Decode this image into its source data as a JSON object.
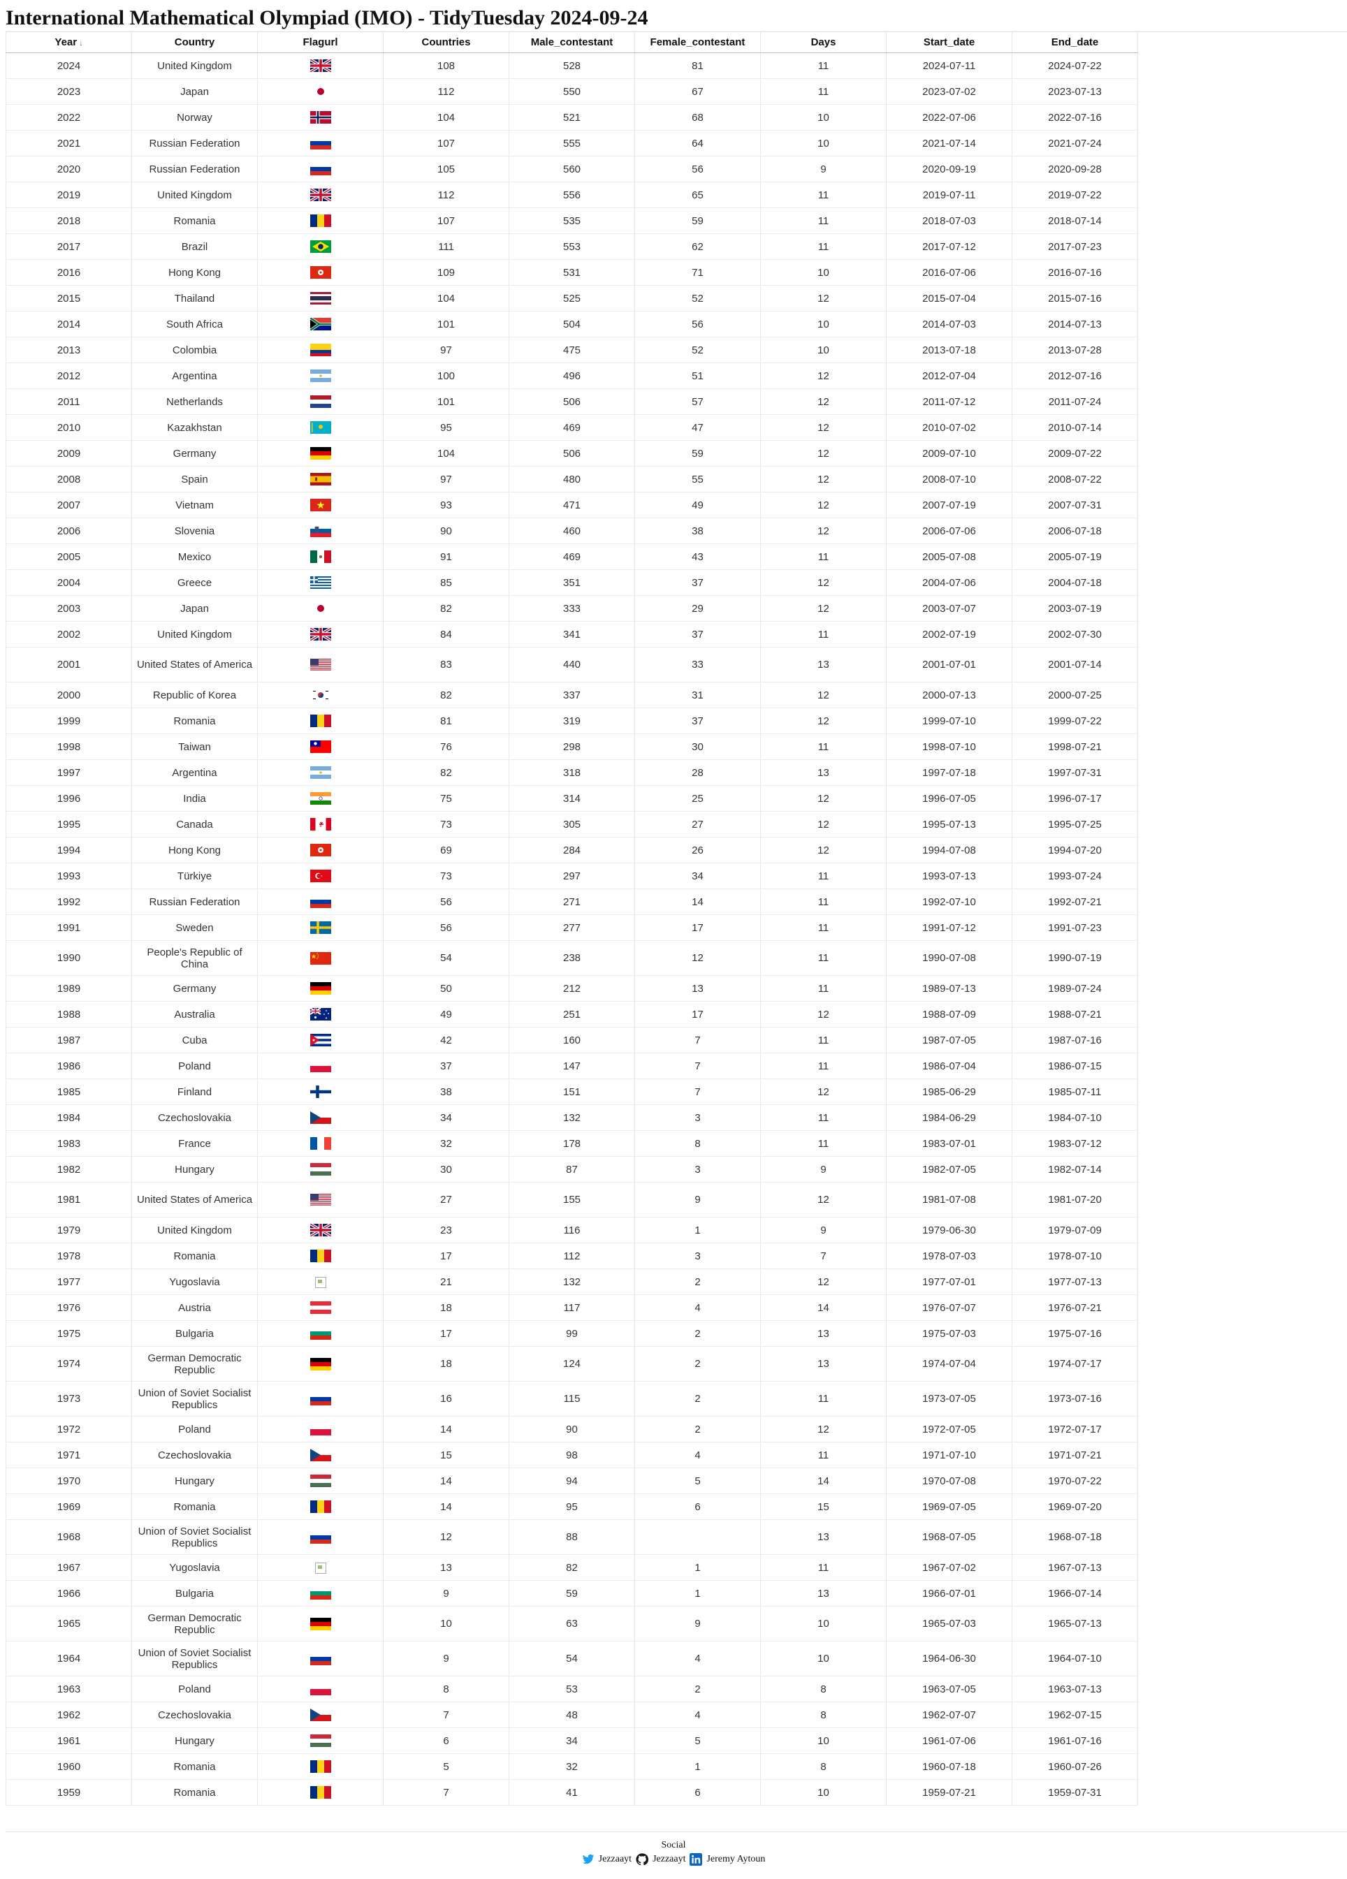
{
  "title": "International Mathematical Olympiad (IMO) - TidyTuesday 2024-09-24",
  "table": {
    "columns": [
      "Year",
      "Country",
      "Flagurl",
      "Countries",
      "Male_contestant",
      "Female_contestant",
      "Days",
      "Start_date",
      "End_date"
    ],
    "sort_indicator": "↓",
    "rows": [
      {
        "year": "2024",
        "country": "United Kingdom",
        "flag": "gb",
        "countries": "108",
        "male": "528",
        "female": "81",
        "days": "11",
        "start": "2024-07-11",
        "end": "2024-07-22"
      },
      {
        "year": "2023",
        "country": "Japan",
        "flag": "jp",
        "countries": "112",
        "male": "550",
        "female": "67",
        "days": "11",
        "start": "2023-07-02",
        "end": "2023-07-13"
      },
      {
        "year": "2022",
        "country": "Norway",
        "flag": "no",
        "countries": "104",
        "male": "521",
        "female": "68",
        "days": "10",
        "start": "2022-07-06",
        "end": "2022-07-16"
      },
      {
        "year": "2021",
        "country": "Russian Federation",
        "flag": "ru",
        "countries": "107",
        "male": "555",
        "female": "64",
        "days": "10",
        "start": "2021-07-14",
        "end": "2021-07-24"
      },
      {
        "year": "2020",
        "country": "Russian Federation",
        "flag": "ru",
        "countries": "105",
        "male": "560",
        "female": "56",
        "days": "9",
        "start": "2020-09-19",
        "end": "2020-09-28"
      },
      {
        "year": "2019",
        "country": "United Kingdom",
        "flag": "gb",
        "countries": "112",
        "male": "556",
        "female": "65",
        "days": "11",
        "start": "2019-07-11",
        "end": "2019-07-22"
      },
      {
        "year": "2018",
        "country": "Romania",
        "flag": "ro",
        "countries": "107",
        "male": "535",
        "female": "59",
        "days": "11",
        "start": "2018-07-03",
        "end": "2018-07-14"
      },
      {
        "year": "2017",
        "country": "Brazil",
        "flag": "br",
        "countries": "111",
        "male": "553",
        "female": "62",
        "days": "11",
        "start": "2017-07-12",
        "end": "2017-07-23"
      },
      {
        "year": "2016",
        "country": "Hong Kong",
        "flag": "hk",
        "countries": "109",
        "male": "531",
        "female": "71",
        "days": "10",
        "start": "2016-07-06",
        "end": "2016-07-16"
      },
      {
        "year": "2015",
        "country": "Thailand",
        "flag": "th",
        "countries": "104",
        "male": "525",
        "female": "52",
        "days": "12",
        "start": "2015-07-04",
        "end": "2015-07-16"
      },
      {
        "year": "2014",
        "country": "South Africa",
        "flag": "za",
        "countries": "101",
        "male": "504",
        "female": "56",
        "days": "10",
        "start": "2014-07-03",
        "end": "2014-07-13"
      },
      {
        "year": "2013",
        "country": "Colombia",
        "flag": "co",
        "countries": "97",
        "male": "475",
        "female": "52",
        "days": "10",
        "start": "2013-07-18",
        "end": "2013-07-28"
      },
      {
        "year": "2012",
        "country": "Argentina",
        "flag": "ar",
        "countries": "100",
        "male": "496",
        "female": "51",
        "days": "12",
        "start": "2012-07-04",
        "end": "2012-07-16"
      },
      {
        "year": "2011",
        "country": "Netherlands",
        "flag": "nl",
        "countries": "101",
        "male": "506",
        "female": "57",
        "days": "12",
        "start": "2011-07-12",
        "end": "2011-07-24"
      },
      {
        "year": "2010",
        "country": "Kazakhstan",
        "flag": "kz",
        "countries": "95",
        "male": "469",
        "female": "47",
        "days": "12",
        "start": "2010-07-02",
        "end": "2010-07-14"
      },
      {
        "year": "2009",
        "country": "Germany",
        "flag": "de",
        "countries": "104",
        "male": "506",
        "female": "59",
        "days": "12",
        "start": "2009-07-10",
        "end": "2009-07-22"
      },
      {
        "year": "2008",
        "country": "Spain",
        "flag": "es",
        "countries": "97",
        "male": "480",
        "female": "55",
        "days": "12",
        "start": "2008-07-10",
        "end": "2008-07-22"
      },
      {
        "year": "2007",
        "country": "Vietnam",
        "flag": "vn",
        "countries": "93",
        "male": "471",
        "female": "49",
        "days": "12",
        "start": "2007-07-19",
        "end": "2007-07-31"
      },
      {
        "year": "2006",
        "country": "Slovenia",
        "flag": "si",
        "countries": "90",
        "male": "460",
        "female": "38",
        "days": "12",
        "start": "2006-07-06",
        "end": "2006-07-18"
      },
      {
        "year": "2005",
        "country": "Mexico",
        "flag": "mx",
        "countries": "91",
        "male": "469",
        "female": "43",
        "days": "11",
        "start": "2005-07-08",
        "end": "2005-07-19"
      },
      {
        "year": "2004",
        "country": "Greece",
        "flag": "gr",
        "countries": "85",
        "male": "351",
        "female": "37",
        "days": "12",
        "start": "2004-07-06",
        "end": "2004-07-18"
      },
      {
        "year": "2003",
        "country": "Japan",
        "flag": "jp",
        "countries": "82",
        "male": "333",
        "female": "29",
        "days": "12",
        "start": "2003-07-07",
        "end": "2003-07-19"
      },
      {
        "year": "2002",
        "country": "United Kingdom",
        "flag": "gb",
        "countries": "84",
        "male": "341",
        "female": "37",
        "days": "11",
        "start": "2002-07-19",
        "end": "2002-07-30"
      },
      {
        "year": "2001",
        "country": "United States of America",
        "flag": "us",
        "countries": "83",
        "male": "440",
        "female": "33",
        "days": "13",
        "start": "2001-07-01",
        "end": "2001-07-14"
      },
      {
        "year": "2000",
        "country": "Republic of Korea",
        "flag": "kr",
        "countries": "82",
        "male": "337",
        "female": "31",
        "days": "12",
        "start": "2000-07-13",
        "end": "2000-07-25"
      },
      {
        "year": "1999",
        "country": "Romania",
        "flag": "ro",
        "countries": "81",
        "male": "319",
        "female": "37",
        "days": "12",
        "start": "1999-07-10",
        "end": "1999-07-22"
      },
      {
        "year": "1998",
        "country": "Taiwan",
        "flag": "tw",
        "countries": "76",
        "male": "298",
        "female": "30",
        "days": "11",
        "start": "1998-07-10",
        "end": "1998-07-21"
      },
      {
        "year": "1997",
        "country": "Argentina",
        "flag": "ar",
        "countries": "82",
        "male": "318",
        "female": "28",
        "days": "13",
        "start": "1997-07-18",
        "end": "1997-07-31"
      },
      {
        "year": "1996",
        "country": "India",
        "flag": "in",
        "countries": "75",
        "male": "314",
        "female": "25",
        "days": "12",
        "start": "1996-07-05",
        "end": "1996-07-17"
      },
      {
        "year": "1995",
        "country": "Canada",
        "flag": "ca",
        "countries": "73",
        "male": "305",
        "female": "27",
        "days": "12",
        "start": "1995-07-13",
        "end": "1995-07-25"
      },
      {
        "year": "1994",
        "country": "Hong Kong",
        "flag": "hk",
        "countries": "69",
        "male": "284",
        "female": "26",
        "days": "12",
        "start": "1994-07-08",
        "end": "1994-07-20"
      },
      {
        "year": "1993",
        "country": "Türkiye",
        "flag": "tr",
        "countries": "73",
        "male": "297",
        "female": "34",
        "days": "11",
        "start": "1993-07-13",
        "end": "1993-07-24"
      },
      {
        "year": "1992",
        "country": "Russian Federation",
        "flag": "ru",
        "countries": "56",
        "male": "271",
        "female": "14",
        "days": "11",
        "start": "1992-07-10",
        "end": "1992-07-21"
      },
      {
        "year": "1991",
        "country": "Sweden",
        "flag": "se",
        "countries": "56",
        "male": "277",
        "female": "17",
        "days": "11",
        "start": "1991-07-12",
        "end": "1991-07-23"
      },
      {
        "year": "1990",
        "country": "People's Republic of China",
        "flag": "cn",
        "countries": "54",
        "male": "238",
        "female": "12",
        "days": "11",
        "start": "1990-07-08",
        "end": "1990-07-19"
      },
      {
        "year": "1989",
        "country": "Germany",
        "flag": "de",
        "countries": "50",
        "male": "212",
        "female": "13",
        "days": "11",
        "start": "1989-07-13",
        "end": "1989-07-24"
      },
      {
        "year": "1988",
        "country": "Australia",
        "flag": "au",
        "countries": "49",
        "male": "251",
        "female": "17",
        "days": "12",
        "start": "1988-07-09",
        "end": "1988-07-21"
      },
      {
        "year": "1987",
        "country": "Cuba",
        "flag": "cu",
        "countries": "42",
        "male": "160",
        "female": "7",
        "days": "11",
        "start": "1987-07-05",
        "end": "1987-07-16"
      },
      {
        "year": "1986",
        "country": "Poland",
        "flag": "pl",
        "countries": "37",
        "male": "147",
        "female": "7",
        "days": "11",
        "start": "1986-07-04",
        "end": "1986-07-15"
      },
      {
        "year": "1985",
        "country": "Finland",
        "flag": "fi",
        "countries": "38",
        "male": "151",
        "female": "7",
        "days": "12",
        "start": "1985-06-29",
        "end": "1985-07-11"
      },
      {
        "year": "1984",
        "country": "Czechoslovakia",
        "flag": "cz",
        "countries": "34",
        "male": "132",
        "female": "3",
        "days": "11",
        "start": "1984-06-29",
        "end": "1984-07-10"
      },
      {
        "year": "1983",
        "country": "France",
        "flag": "fr",
        "countries": "32",
        "male": "178",
        "female": "8",
        "days": "11",
        "start": "1983-07-01",
        "end": "1983-07-12"
      },
      {
        "year": "1982",
        "country": "Hungary",
        "flag": "hu",
        "countries": "30",
        "male": "87",
        "female": "3",
        "days": "9",
        "start": "1982-07-05",
        "end": "1982-07-14"
      },
      {
        "year": "1981",
        "country": "United States of America",
        "flag": "us",
        "countries": "27",
        "male": "155",
        "female": "9",
        "days": "12",
        "start": "1981-07-08",
        "end": "1981-07-20"
      },
      {
        "year": "1979",
        "country": "United Kingdom",
        "flag": "gb",
        "countries": "23",
        "male": "116",
        "female": "1",
        "days": "9",
        "start": "1979-06-30",
        "end": "1979-07-09"
      },
      {
        "year": "1978",
        "country": "Romania",
        "flag": "ro",
        "countries": "17",
        "male": "112",
        "female": "3",
        "days": "7",
        "start": "1978-07-03",
        "end": "1978-07-10"
      },
      {
        "year": "1977",
        "country": "Yugoslavia",
        "flag": "broken",
        "countries": "21",
        "male": "132",
        "female": "2",
        "days": "12",
        "start": "1977-07-01",
        "end": "1977-07-13"
      },
      {
        "year": "1976",
        "country": "Austria",
        "flag": "at",
        "countries": "18",
        "male": "117",
        "female": "4",
        "days": "14",
        "start": "1976-07-07",
        "end": "1976-07-21"
      },
      {
        "year": "1975",
        "country": "Bulgaria",
        "flag": "bg",
        "countries": "17",
        "male": "99",
        "female": "2",
        "days": "13",
        "start": "1975-07-03",
        "end": "1975-07-16"
      },
      {
        "year": "1974",
        "country": "German Democratic Republic",
        "flag": "de",
        "countries": "18",
        "male": "124",
        "female": "2",
        "days": "13",
        "start": "1974-07-04",
        "end": "1974-07-17"
      },
      {
        "year": "1973",
        "country": "Union of Soviet Socialist Republics",
        "flag": "ru",
        "countries": "16",
        "male": "115",
        "female": "2",
        "days": "11",
        "start": "1973-07-05",
        "end": "1973-07-16"
      },
      {
        "year": "1972",
        "country": "Poland",
        "flag": "pl",
        "countries": "14",
        "male": "90",
        "female": "2",
        "days": "12",
        "start": "1972-07-05",
        "end": "1972-07-17"
      },
      {
        "year": "1971",
        "country": "Czechoslovakia",
        "flag": "cz",
        "countries": "15",
        "male": "98",
        "female": "4",
        "days": "11",
        "start": "1971-07-10",
        "end": "1971-07-21"
      },
      {
        "year": "1970",
        "country": "Hungary",
        "flag": "hu",
        "countries": "14",
        "male": "94",
        "female": "5",
        "days": "14",
        "start": "1970-07-08",
        "end": "1970-07-22"
      },
      {
        "year": "1969",
        "country": "Romania",
        "flag": "ro",
        "countries": "14",
        "male": "95",
        "female": "6",
        "days": "15",
        "start": "1969-07-05",
        "end": "1969-07-20"
      },
      {
        "year": "1968",
        "country": "Union of Soviet Socialist Republics",
        "flag": "ru",
        "countries": "12",
        "male": "88",
        "female": "",
        "days": "13",
        "start": "1968-07-05",
        "end": "1968-07-18"
      },
      {
        "year": "1967",
        "country": "Yugoslavia",
        "flag": "broken",
        "countries": "13",
        "male": "82",
        "female": "1",
        "days": "11",
        "start": "1967-07-02",
        "end": "1967-07-13"
      },
      {
        "year": "1966",
        "country": "Bulgaria",
        "flag": "bg",
        "countries": "9",
        "male": "59",
        "female": "1",
        "days": "13",
        "start": "1966-07-01",
        "end": "1966-07-14"
      },
      {
        "year": "1965",
        "country": "German Democratic Republic",
        "flag": "de",
        "countries": "10",
        "male": "63",
        "female": "9",
        "days": "10",
        "start": "1965-07-03",
        "end": "1965-07-13"
      },
      {
        "year": "1964",
        "country": "Union of Soviet Socialist Republics",
        "flag": "ru",
        "countries": "9",
        "male": "54",
        "female": "4",
        "days": "10",
        "start": "1964-06-30",
        "end": "1964-07-10"
      },
      {
        "year": "1963",
        "country": "Poland",
        "flag": "pl",
        "countries": "8",
        "male": "53",
        "female": "2",
        "days": "8",
        "start": "1963-07-05",
        "end": "1963-07-13"
      },
      {
        "year": "1962",
        "country": "Czechoslovakia",
        "flag": "cz",
        "countries": "7",
        "male": "48",
        "female": "4",
        "days": "8",
        "start": "1962-07-07",
        "end": "1962-07-15"
      },
      {
        "year": "1961",
        "country": "Hungary",
        "flag": "hu",
        "countries": "6",
        "male": "34",
        "female": "5",
        "days": "10",
        "start": "1961-07-06",
        "end": "1961-07-16"
      },
      {
        "year": "1960",
        "country": "Romania",
        "flag": "ro",
        "countries": "5",
        "male": "32",
        "female": "1",
        "days": "8",
        "start": "1960-07-18",
        "end": "1960-07-26"
      },
      {
        "year": "1959",
        "country": "Romania",
        "flag": "ro",
        "countries": "7",
        "male": "41",
        "female": "6",
        "days": "10",
        "start": "1959-07-21",
        "end": "1959-07-31"
      }
    ]
  },
  "footer": {
    "heading": "Social",
    "links": [
      {
        "icon": "twitter-icon",
        "label": "Jezzaayt"
      },
      {
        "icon": "github-icon",
        "label": "Jezzaayt"
      },
      {
        "icon": "linkedin-icon",
        "label": "Jeremy Aytoun"
      }
    ]
  },
  "colors": {
    "twitter": "#1da1f2",
    "github": "#181717",
    "linkedin": "#0a66c2"
  }
}
